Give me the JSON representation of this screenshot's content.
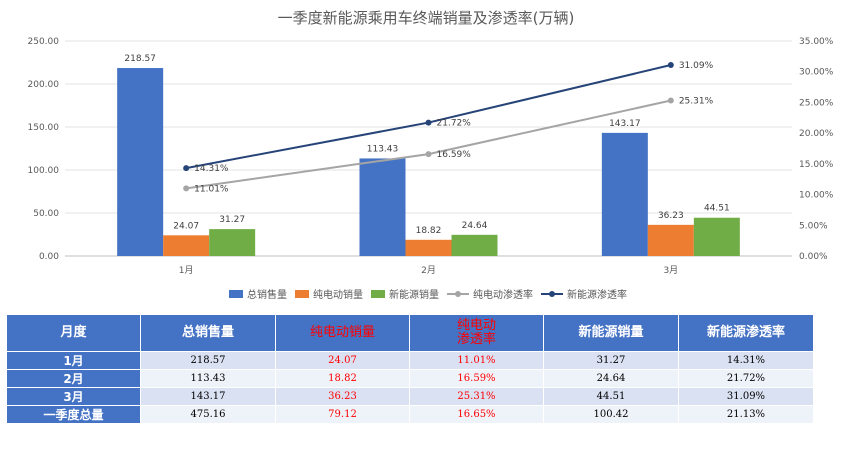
{
  "chart_data": {
    "type": "bar",
    "title": "一季度新能源乘用车终端销量及渗透率(万辆)",
    "categories": [
      "1月",
      "2月",
      "3月"
    ],
    "series": [
      {
        "name": "总销售量",
        "kind": "bar",
        "axis": "left",
        "color": "#4472c4",
        "values": [
          218.57,
          113.43,
          143.17
        ],
        "labels": [
          "218.57",
          "113.43",
          "143.17"
        ]
      },
      {
        "name": "纯电动销量",
        "kind": "bar",
        "axis": "left",
        "color": "#ed7d31",
        "values": [
          24.07,
          18.82,
          36.23
        ],
        "labels": [
          "24.07",
          "18.82",
          "36.23"
        ]
      },
      {
        "name": "新能源销量",
        "kind": "bar",
        "axis": "left",
        "color": "#70ad47",
        "values": [
          31.27,
          24.64,
          44.51
        ],
        "labels": [
          "31.27",
          "24.64",
          "44.51"
        ]
      },
      {
        "name": "纯电动渗透率",
        "kind": "line",
        "axis": "right",
        "color": "#a5a5a5",
        "values": [
          11.01,
          16.59,
          25.31
        ],
        "labels": [
          "11.01%",
          "16.59%",
          "25.31%"
        ]
      },
      {
        "name": "新能源渗透率",
        "kind": "line",
        "axis": "right",
        "color": "#264478",
        "values": [
          14.31,
          21.72,
          31.09
        ],
        "labels": [
          "14.31%",
          "21.72%",
          "31.09%"
        ]
      }
    ],
    "left_axis": {
      "min": 0,
      "max": 250,
      "step": 50,
      "tick_labels": [
        "0.00",
        "50.00",
        "100.00",
        "150.00",
        "200.00",
        "250.00"
      ]
    },
    "right_axis": {
      "min": 0,
      "max": 35,
      "step": 5,
      "tick_labels": [
        "0.00%",
        "5.00%",
        "10.00%",
        "15.00%",
        "20.00%",
        "25.00%",
        "30.00%",
        "35.00%"
      ]
    },
    "grid": true,
    "legend_position": "bottom"
  },
  "table": {
    "headers": [
      {
        "lines": [
          "月度"
        ],
        "red": false
      },
      {
        "lines": [
          "总销售量"
        ],
        "red": false
      },
      {
        "lines": [
          "纯电动销量"
        ],
        "red": true
      },
      {
        "lines": [
          "纯电动",
          "渗透率"
        ],
        "red": true
      },
      {
        "lines": [
          "新能源销量"
        ],
        "red": false
      },
      {
        "lines": [
          "新能源渗透率"
        ],
        "red": false
      }
    ],
    "rows": [
      [
        "1月",
        "218.57",
        "24.07",
        "11.01%",
        "31.27",
        "14.31%"
      ],
      [
        "2月",
        "113.43",
        "18.82",
        "16.59%",
        "24.64",
        "21.72%"
      ],
      [
        "3月",
        "143.17",
        "36.23",
        "25.31%",
        "44.51",
        "31.09%"
      ],
      [
        "一季度总量",
        "475.16",
        "79.12",
        "16.65%",
        "100.42",
        "21.13%"
      ]
    ],
    "red_columns": [
      2,
      3
    ]
  }
}
